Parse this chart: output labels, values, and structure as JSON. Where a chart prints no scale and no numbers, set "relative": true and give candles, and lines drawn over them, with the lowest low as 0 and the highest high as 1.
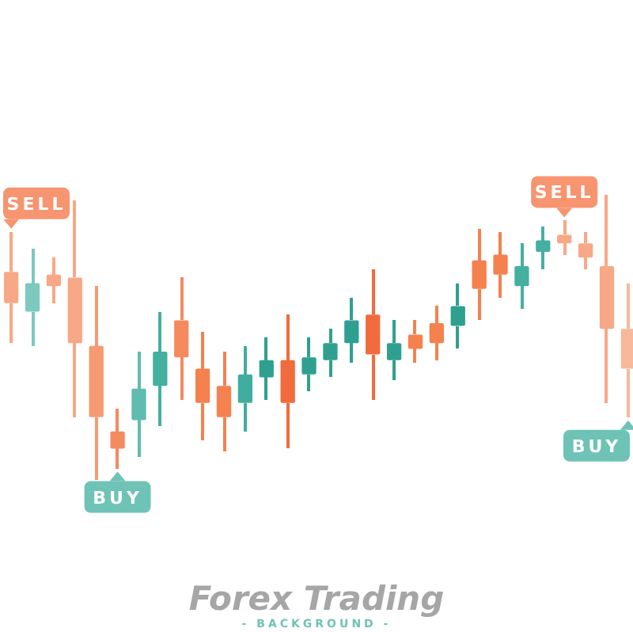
{
  "chart_data": {
    "type": "candlestick",
    "title": "Forex Trading",
    "subtitle": "- BACKGROUND -",
    "relative": true,
    "categories": [
      null,
      null,
      null,
      null,
      null,
      null,
      null,
      null,
      null,
      null,
      null,
      null,
      null,
      null,
      null,
      null,
      null,
      null,
      null,
      null,
      null,
      null,
      null,
      null,
      null,
      null,
      null,
      null,
      null,
      null
    ],
    "ohlc": [
      [
        0.73,
        0.87,
        0.48,
        0.62
      ],
      [
        0.59,
        0.81,
        0.47,
        0.69
      ],
      [
        0.72,
        0.78,
        0.62,
        0.68
      ],
      [
        0.71,
        0.98,
        0.22,
        0.48
      ],
      [
        0.47,
        0.68,
        0,
        0.22
      ],
      [
        0.17,
        0.25,
        0.04,
        0.11
      ],
      [
        0.21,
        0.45,
        0.08,
        0.32
      ],
      [
        0.33,
        0.59,
        0.19,
        0.45
      ],
      [
        0.56,
        0.71,
        0.28,
        0.43
      ],
      [
        0.39,
        0.52,
        0.14,
        0.27
      ],
      [
        0.33,
        0.45,
        0.1,
        0.22
      ],
      [
        0.27,
        0.47,
        0.17,
        0.37
      ],
      [
        0.36,
        0.5,
        0.28,
        0.42
      ],
      [
        0.42,
        0.58,
        0.11,
        0.27
      ],
      [
        0.37,
        0.5,
        0.31,
        0.43
      ],
      [
        0.42,
        0.53,
        0.36,
        0.48
      ],
      [
        0.48,
        0.64,
        0.41,
        0.56
      ],
      [
        0.58,
        0.74,
        0.28,
        0.44
      ],
      [
        0.42,
        0.56,
        0.35,
        0.48
      ],
      [
        0.51,
        0.56,
        0.41,
        0.46
      ],
      [
        0.55,
        0.61,
        0.42,
        0.48
      ],
      [
        0.54,
        0.69,
        0.46,
        0.61
      ],
      [
        0.77,
        0.88,
        0.56,
        0.67
      ],
      [
        0.79,
        0.87,
        0.64,
        0.72
      ],
      [
        0.68,
        0.83,
        0.6,
        0.75
      ],
      [
        0.8,
        0.89,
        0.74,
        0.84
      ],
      [
        0.86,
        0.91,
        0.79,
        0.83
      ],
      [
        0.83,
        0.87,
        0.74,
        0.78
      ],
      [
        0.75,
        1,
        0.27,
        0.53
      ],
      [
        0.53,
        0.69,
        0.22,
        0.39
      ]
    ],
    "colors": [
      "#f7a886",
      "#7cc9bd",
      "#f7a886",
      "#f7a886",
      "#f69a72",
      "#f58a5f",
      "#5fbcae",
      "#45b0a0",
      "#f58a5f",
      "#f5814f",
      "#f5814f",
      "#3fae9f",
      "#2fa08f",
      "#f26b3c",
      "#2fa08f",
      "#2fa08f",
      "#2fa08f",
      "#f26b3c",
      "#2fa08f",
      "#f5814f",
      "#f5814f",
      "#2fa08f",
      "#f5814f",
      "#f5814f",
      "#45b0a0",
      "#45b0a0",
      "#f7a886",
      "#f7a886",
      "#f7a886",
      "#f8b89b"
    ],
    "annotations": [
      "SELL",
      "SELL",
      "BUY",
      "BUY"
    ]
  }
}
